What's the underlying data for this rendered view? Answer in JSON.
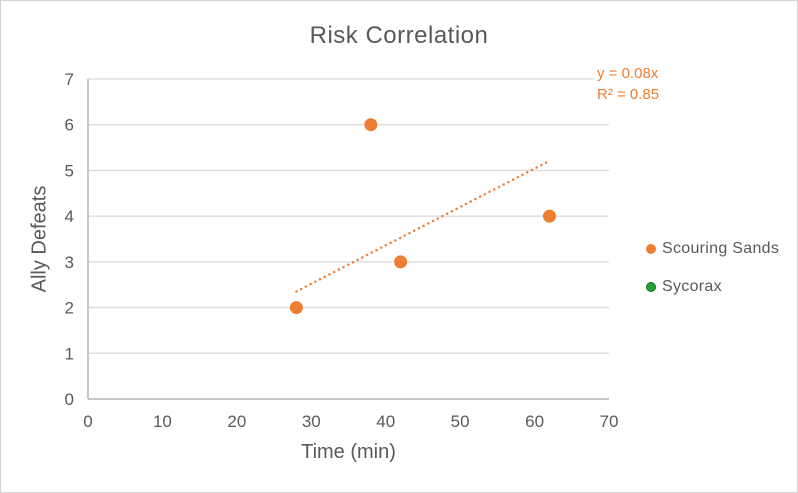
{
  "chart_data": {
    "type": "scatter",
    "title": "Risk Correlation",
    "xlabel": "Time (min)",
    "ylabel": "Ally Defeats",
    "xlim": [
      0,
      70
    ],
    "ylim": [
      0,
      7
    ],
    "xticks": [
      0,
      10,
      20,
      30,
      40,
      50,
      60,
      70
    ],
    "yticks": [
      0,
      1,
      2,
      3,
      4,
      5,
      6,
      7
    ],
    "grid": "horizontal-only",
    "legend_position": "right",
    "series": [
      {
        "name": "Scouring Sands",
        "color": "#ED7D31",
        "marker": "circle",
        "points": [
          [
            28,
            2
          ],
          [
            38,
            6
          ],
          [
            42,
            3
          ],
          [
            62,
            4
          ]
        ]
      },
      {
        "name": "Sycorax",
        "color": "#21A038",
        "border_color": "#156E2A",
        "marker": "circle",
        "points": []
      }
    ],
    "trendline": {
      "for_series": "Scouring Sands",
      "style": "dotted",
      "color": "#ED7D31",
      "slope": 0.084,
      "intercept": 0,
      "x_range": [
        28,
        62
      ],
      "equation_label": "y = 0.08x",
      "r2_label": "R² = 0.85"
    }
  }
}
